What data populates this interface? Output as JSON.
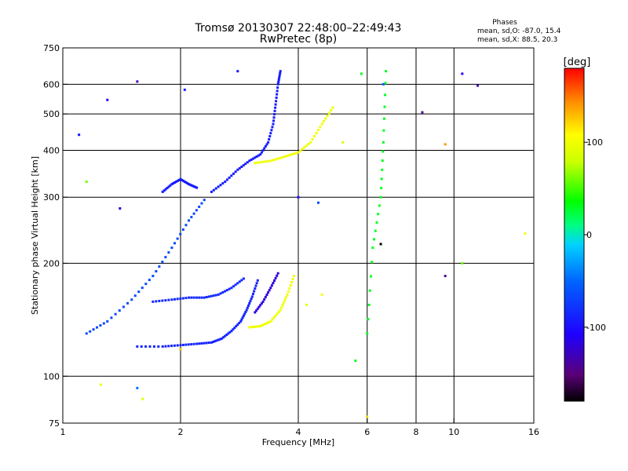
{
  "chart_data": {
    "type": "scatter",
    "title": "Tromsø 20130307 22:48:00–22:49:43",
    "subtitle": "RwPretec (8p)",
    "xlabel": "Frequency [MHz]",
    "ylabel": "Stationary phase Virtual Height [km]",
    "x_scale": "log",
    "y_scale": "log",
    "xlim": [
      1,
      16
    ],
    "ylim": [
      75,
      750
    ],
    "x_ticks": [
      "1",
      "2",
      "4",
      "6",
      "8",
      "10",
      "16"
    ],
    "x_ticks_values": [
      1,
      2,
      4,
      6,
      8,
      10,
      16
    ],
    "y_ticks": [
      "75",
      "100",
      "200",
      "300",
      "400",
      "500",
      "600",
      "750"
    ],
    "y_ticks_values": [
      75,
      100,
      200,
      300,
      400,
      500,
      600,
      750
    ],
    "x_gridlines": [
      2,
      4,
      6,
      8,
      10
    ],
    "y_gridlines": [
      100,
      200,
      300,
      400,
      500,
      600
    ],
    "legend": {
      "title": "Phases",
      "line1": "mean, sd,O:  -87.0, 15.4",
      "line2": "mean, sd,X:   88.5, 20.3"
    },
    "colorbar": {
      "label": "[deg]",
      "range": [
        -180,
        180
      ],
      "ticks": [
        "100",
        "0",
        "-100"
      ],
      "tick_values": [
        100,
        0,
        -100
      ]
    },
    "traces": [
      {
        "name": "",
        "phase": -90,
        "points": [
          [
            1.55,
            120
          ],
          [
            1.8,
            120
          ],
          [
            2.0,
            121
          ],
          [
            2.2,
            122
          ],
          [
            2.4,
            123
          ],
          [
            2.55,
            126
          ],
          [
            2.7,
            132
          ],
          [
            2.85,
            140
          ],
          [
            2.95,
            150
          ],
          [
            3.05,
            163
          ],
          [
            3.15,
            180
          ]
        ]
      },
      {
        "name": "",
        "phase": -88,
        "points": [
          [
            1.7,
            158
          ],
          [
            1.9,
            160
          ],
          [
            2.1,
            162
          ],
          [
            2.3,
            162
          ],
          [
            2.5,
            165
          ],
          [
            2.7,
            172
          ],
          [
            2.9,
            182
          ]
        ]
      },
      {
        "name": "",
        "phase": -95,
        "points": [
          [
            1.8,
            310
          ],
          [
            1.9,
            325
          ],
          [
            2.0,
            335
          ],
          [
            2.1,
            325
          ],
          [
            2.2,
            318
          ]
        ]
      },
      {
        "name": "",
        "phase": -95,
        "points": [
          [
            2.4,
            310
          ],
          [
            2.6,
            330
          ],
          [
            2.8,
            355
          ],
          [
            3.0,
            375
          ],
          [
            3.2,
            390
          ],
          [
            3.35,
            420
          ],
          [
            3.45,
            470
          ],
          [
            3.5,
            530
          ],
          [
            3.55,
            600
          ],
          [
            3.6,
            650
          ]
        ]
      },
      {
        "name": "",
        "phase": -120,
        "points": [
          [
            3.1,
            148
          ],
          [
            3.25,
            158
          ],
          [
            3.4,
            172
          ],
          [
            3.55,
            188
          ]
        ]
      },
      {
        "name": "",
        "phase": 100,
        "points": [
          [
            3.1,
            370
          ],
          [
            3.4,
            375
          ],
          [
            3.7,
            385
          ],
          [
            4.0,
            395
          ],
          [
            4.3,
            420
          ],
          [
            4.6,
            470
          ],
          [
            4.9,
            520
          ]
        ]
      },
      {
        "name": "",
        "phase": 100,
        "points": [
          [
            3.0,
            135
          ],
          [
            3.2,
            136
          ],
          [
            3.4,
            140
          ],
          [
            3.6,
            150
          ],
          [
            3.75,
            165
          ],
          [
            3.9,
            185
          ]
        ]
      },
      {
        "name": "",
        "phase": -70,
        "points": [
          [
            1.15,
            130
          ],
          [
            1.3,
            140
          ],
          [
            1.5,
            160
          ],
          [
            1.7,
            185
          ],
          [
            1.9,
            220
          ],
          [
            2.1,
            260
          ],
          [
            2.3,
            295
          ]
        ]
      },
      {
        "name": "",
        "phase": 30,
        "points": [
          [
            6.0,
            130
          ],
          [
            6.2,
            220
          ],
          [
            6.5,
            300
          ],
          [
            6.6,
            420
          ],
          [
            6.7,
            650
          ]
        ]
      }
    ],
    "scatter": [
      {
        "x": 1.3,
        "y": 545,
        "phase": -110
      },
      {
        "x": 1.55,
        "y": 610,
        "phase": -130
      },
      {
        "x": 2.05,
        "y": 580,
        "phase": -90
      },
      {
        "x": 2.8,
        "y": 650,
        "phase": -100
      },
      {
        "x": 5.8,
        "y": 640,
        "phase": 30
      },
      {
        "x": 6.6,
        "y": 600,
        "phase": -60
      },
      {
        "x": 8.3,
        "y": 505,
        "phase": -140
      },
      {
        "x": 10.5,
        "y": 640,
        "phase": -110
      },
      {
        "x": 11.5,
        "y": 595,
        "phase": -130
      },
      {
        "x": 9.5,
        "y": 415,
        "phase": 140
      },
      {
        "x": 1.1,
        "y": 440,
        "phase": -100
      },
      {
        "x": 1.15,
        "y": 330,
        "phase": 60
      },
      {
        "x": 1.4,
        "y": 280,
        "phase": -120
      },
      {
        "x": 9.5,
        "y": 185,
        "phase": -140
      },
      {
        "x": 10.5,
        "y": 200,
        "phase": 60
      },
      {
        "x": 15.2,
        "y": 240,
        "phase": 100
      },
      {
        "x": 1.6,
        "y": 87,
        "phase": 90
      },
      {
        "x": 1.55,
        "y": 93,
        "phase": -50
      },
      {
        "x": 1.25,
        "y": 95,
        "phase": 100
      },
      {
        "x": 2.0,
        "y": 118,
        "phase": 130
      },
      {
        "x": 5.6,
        "y": 110,
        "phase": 30
      },
      {
        "x": 6.5,
        "y": 225,
        "phase": -180
      },
      {
        "x": 4.6,
        "y": 165,
        "phase": 100
      },
      {
        "x": 4.2,
        "y": 155,
        "phase": 95
      },
      {
        "x": 6.0,
        "y": 78,
        "phase": 120
      },
      {
        "x": 4.5,
        "y": 290,
        "phase": -70
      },
      {
        "x": 4.0,
        "y": 300,
        "phase": -100
      },
      {
        "x": 5.2,
        "y": 420,
        "phase": 90
      }
    ]
  }
}
